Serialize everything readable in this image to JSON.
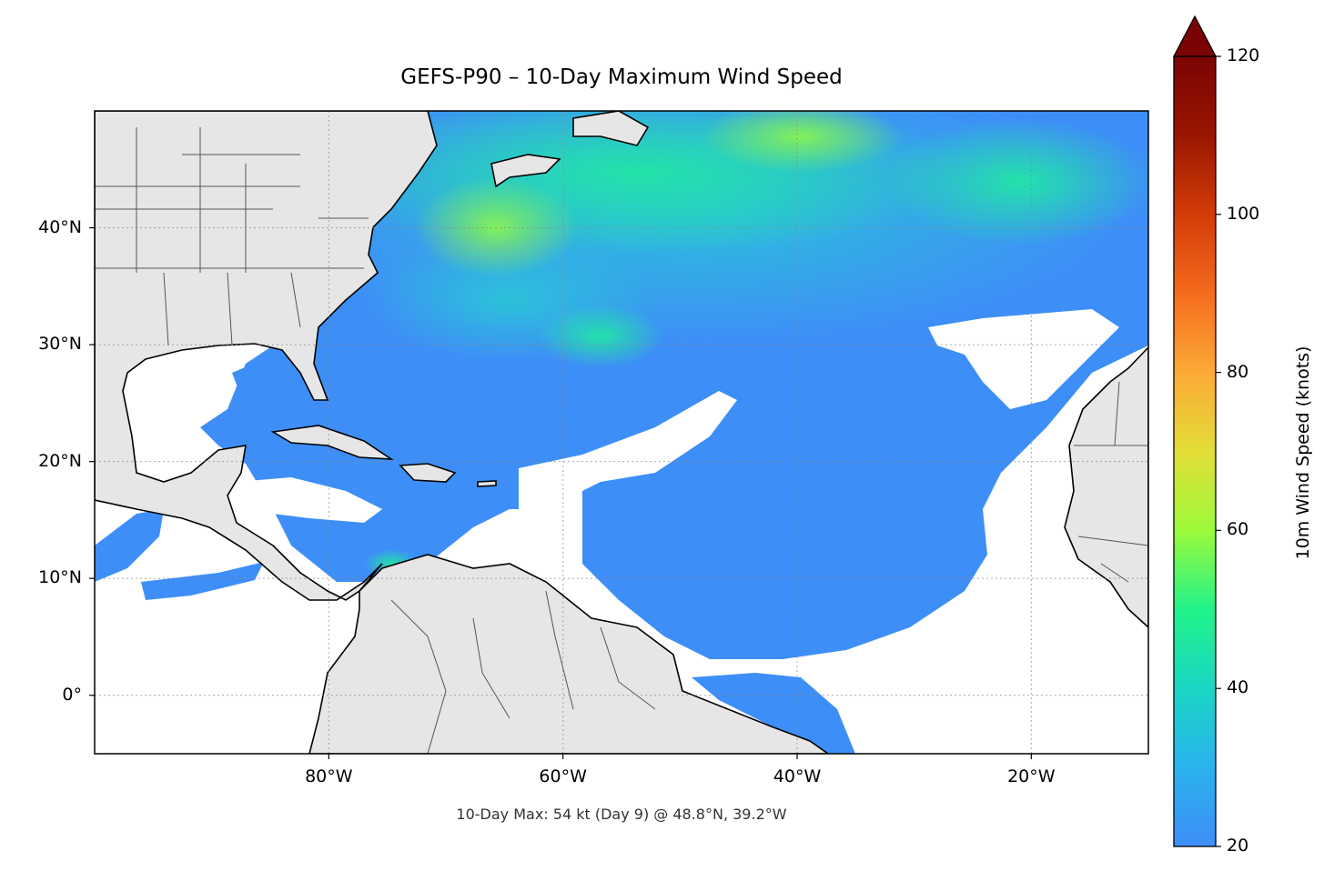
{
  "title": "GEFS-P90 – 10-Day Maximum Wind Speed",
  "footer": "10-Day Max: 54 kt (Day 9) @ 48.8°N, 39.2°W",
  "map": {
    "lon_range": [
      -100,
      -10
    ],
    "lat_range": [
      -5,
      50
    ],
    "lon_ticks": [
      {
        "value": -80,
        "label": "80°W"
      },
      {
        "value": -60,
        "label": "60°W"
      },
      {
        "value": -40,
        "label": "40°W"
      },
      {
        "value": -20,
        "label": "20°W"
      }
    ],
    "lat_ticks": [
      {
        "value": 40,
        "label": "40°N"
      },
      {
        "value": 30,
        "label": "30°N"
      },
      {
        "value": 20,
        "label": "20°N"
      },
      {
        "value": 10,
        "label": "10°N"
      },
      {
        "value": 0,
        "label": "0°"
      }
    ],
    "gridlines": true,
    "land_color": "#e6e6e6",
    "coastline_color": "#000000"
  },
  "colorbar": {
    "label": "10m Wind Speed (knots)",
    "min": 20,
    "max": 120,
    "extend": "max",
    "ticks": [
      {
        "value": 20,
        "label": "20"
      },
      {
        "value": 40,
        "label": "40"
      },
      {
        "value": 60,
        "label": "60"
      },
      {
        "value": 80,
        "label": "80"
      },
      {
        "value": 100,
        "label": "100"
      },
      {
        "value": 120,
        "label": "120"
      }
    ],
    "colormap": [
      "#3e8ef7",
      "#2ab3ee",
      "#1ad6c4",
      "#22f38a",
      "#9cfa3a",
      "#e3dd37",
      "#fcaa36",
      "#f56b1d",
      "#d23c07",
      "#9a1601",
      "#7a0403"
    ]
  },
  "max_point": {
    "value": 54,
    "day": 9,
    "lat": 48.8,
    "lon": -39.2
  }
}
